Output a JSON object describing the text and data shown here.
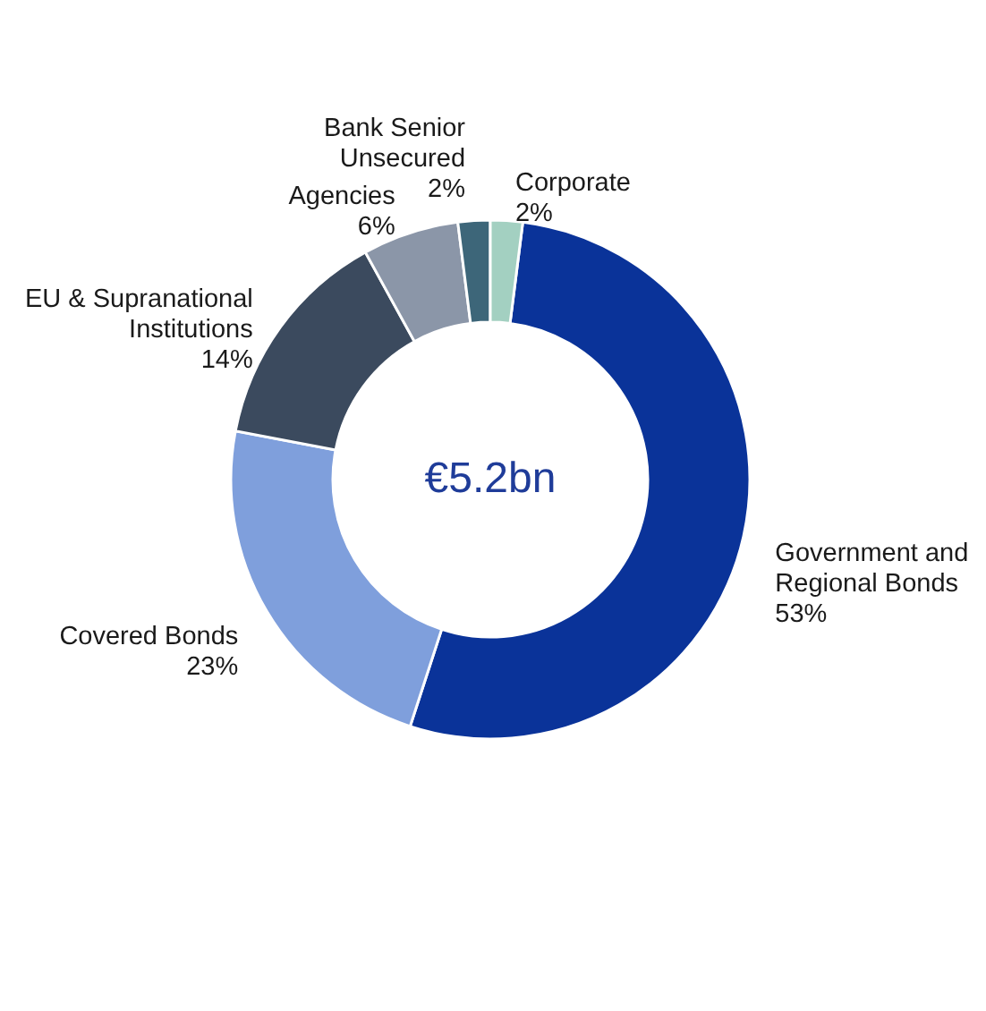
{
  "chart_data": {
    "type": "donut",
    "categories": [
      "Government and Regional Bonds",
      "Covered Bonds",
      "EU & Supranational Institutions",
      "Agencies",
      "Bank Senior Unsecured",
      "Corporate"
    ],
    "values": [
      53,
      23,
      14,
      6,
      2,
      2
    ],
    "value_labels": [
      "53%",
      "23%",
      "14%",
      "6%",
      "2%",
      "2%"
    ],
    "colors": [
      "#0a3399",
      "#7f9fdc",
      "#3b4a5e",
      "#8b96a8",
      "#3d6679",
      "#a3d0c1"
    ],
    "annotations": [
      "€5.2bn"
    ]
  }
}
